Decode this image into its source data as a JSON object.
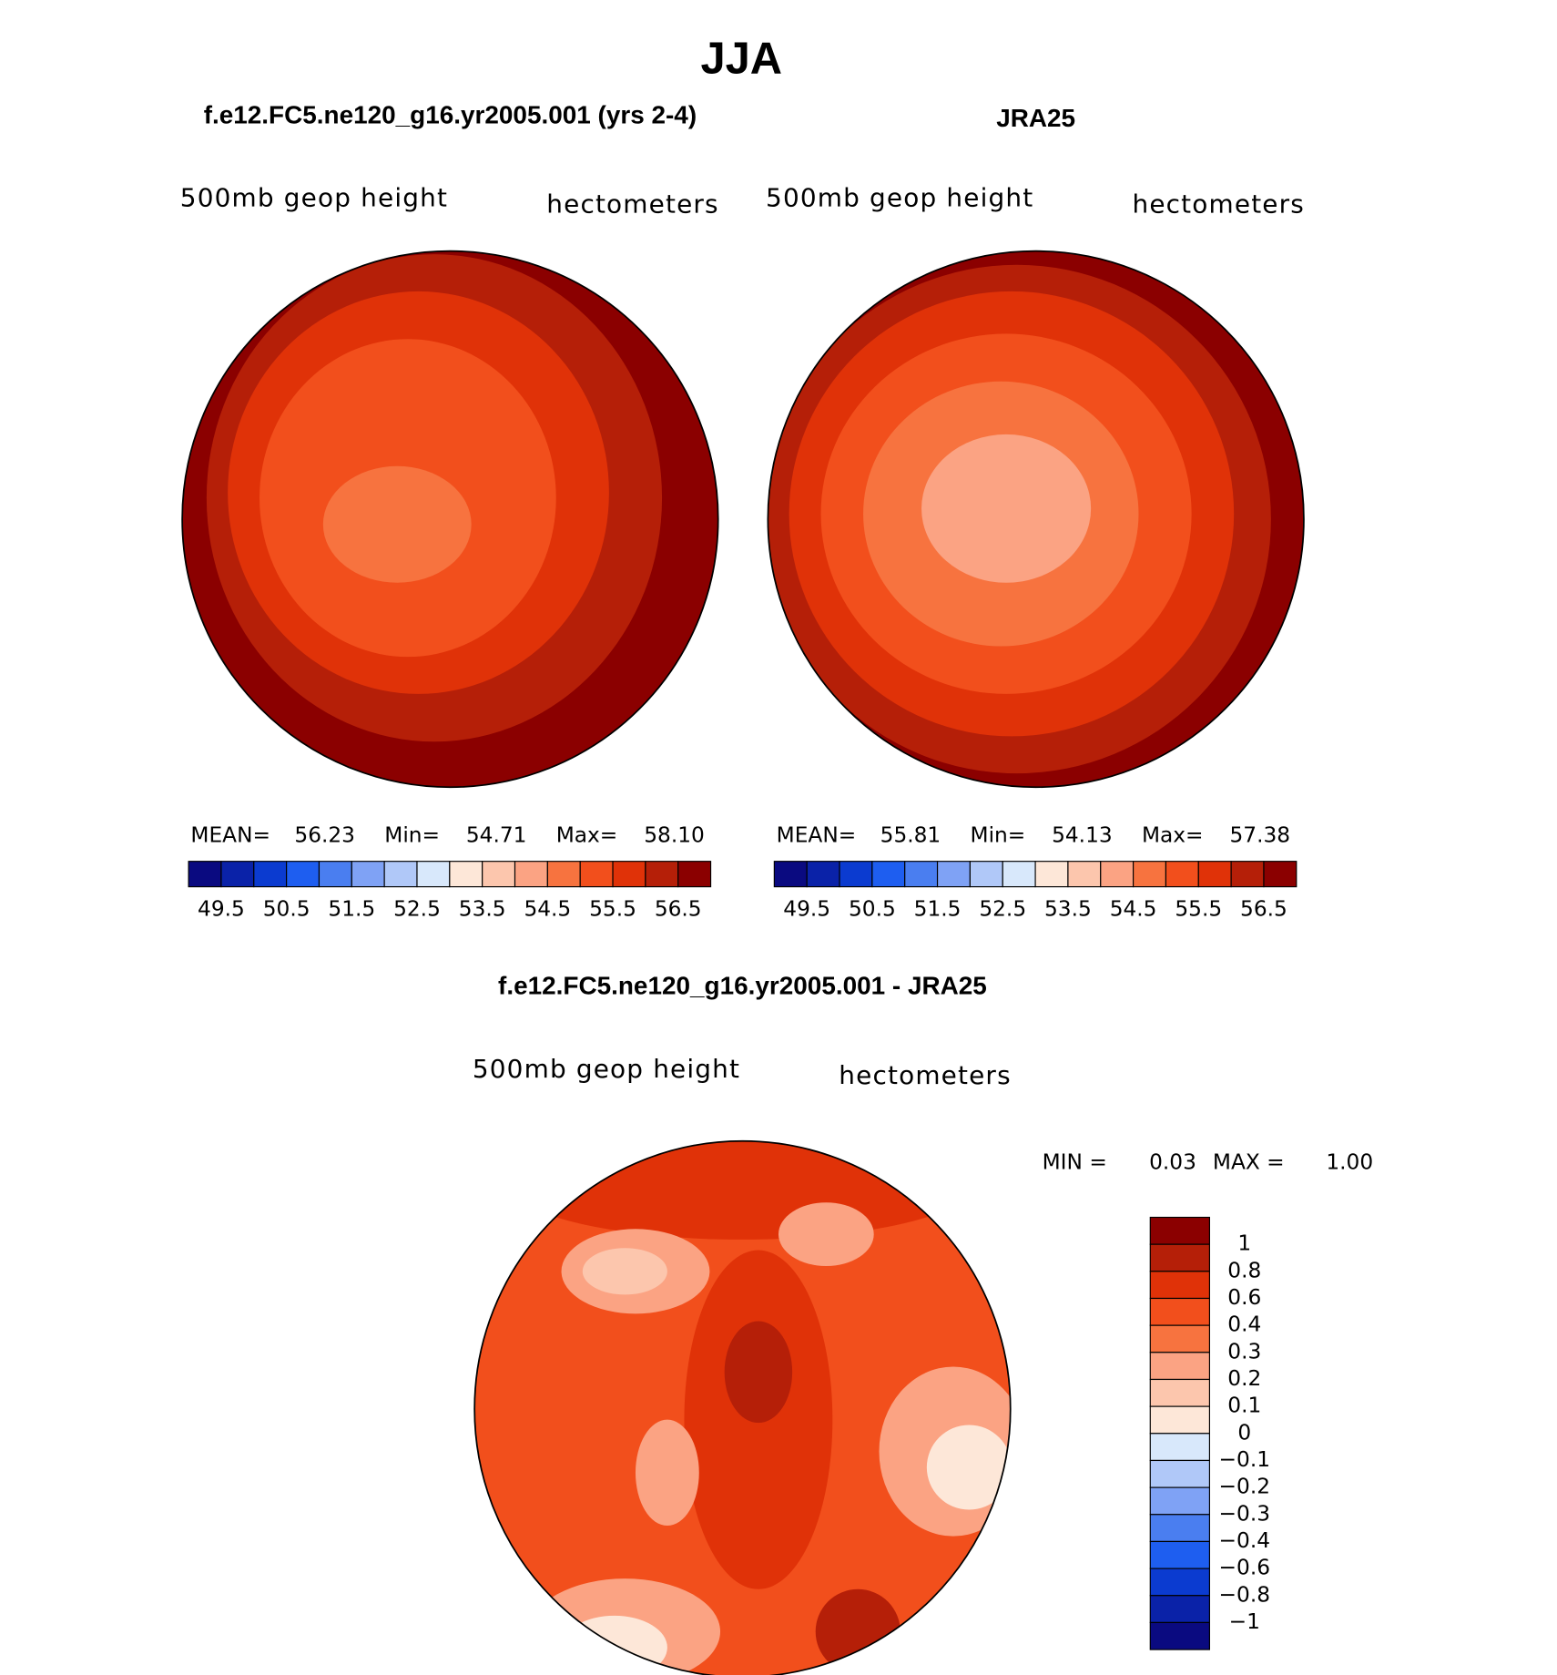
{
  "title": "JJA",
  "panels": [
    {
      "heading": "f.e12.FC5.ne120_g16.yr2005.001 (yrs 2-4)",
      "field": "500mb geop height",
      "units": "hectometers",
      "stats": [
        {
          "label": "MEAN=",
          "value": "56.23"
        },
        {
          "label": "Min=",
          "value": "54.71"
        },
        {
          "label": "Max=",
          "value": "58.10"
        }
      ]
    },
    {
      "heading": "JRA25",
      "field": "500mb geop height",
      "units": "hectometers",
      "stats": [
        {
          "label": "MEAN=",
          "value": "55.81"
        },
        {
          "label": "Min=",
          "value": "54.13"
        },
        {
          "label": "Max=",
          "value": "57.38"
        }
      ]
    },
    {
      "heading": "f.e12.FC5.ne120_g16.yr2005.001 - JRA25",
      "field": "500mb geop height",
      "units": "hectometers",
      "stats": [
        {
          "label": "MIN =",
          "value": "0.03"
        },
        {
          "label": "MAX =",
          "value": "1.00"
        }
      ]
    }
  ],
  "colorbar_top": {
    "colors": [
      "#0a0a80",
      "#0a22a8",
      "#0b3bd0",
      "#1e5ef0",
      "#4a7ef0",
      "#7fa2f5",
      "#b0c8f8",
      "#d8e8fb",
      "#fde7d8",
      "#fcc6ad",
      "#fba383",
      "#f7733f",
      "#f24f1c",
      "#e03208",
      "#b51f08",
      "#8b0000"
    ],
    "labels": [
      "49.5",
      "50.5",
      "51.5",
      "52.5",
      "53.5",
      "54.5",
      "55.5",
      "56.5"
    ]
  },
  "colorbar_diff": {
    "colors": [
      "#8b0000",
      "#b51f08",
      "#e03208",
      "#f24f1c",
      "#f7733f",
      "#fba383",
      "#fcc6ad",
      "#fde7d8",
      "#d8e8fb",
      "#b0c8f8",
      "#7fa2f5",
      "#4a7ef0",
      "#1e5ef0",
      "#0b3bd0",
      "#0a22a8",
      "#0a0a80"
    ],
    "labels": [
      "1",
      "0.8",
      "0.6",
      "0.4",
      "0.3",
      "0.2",
      "0.1",
      "0",
      "−0.1",
      "−0.2",
      "−0.3",
      "−0.4",
      "−0.6",
      "−0.8",
      "−1"
    ]
  }
}
